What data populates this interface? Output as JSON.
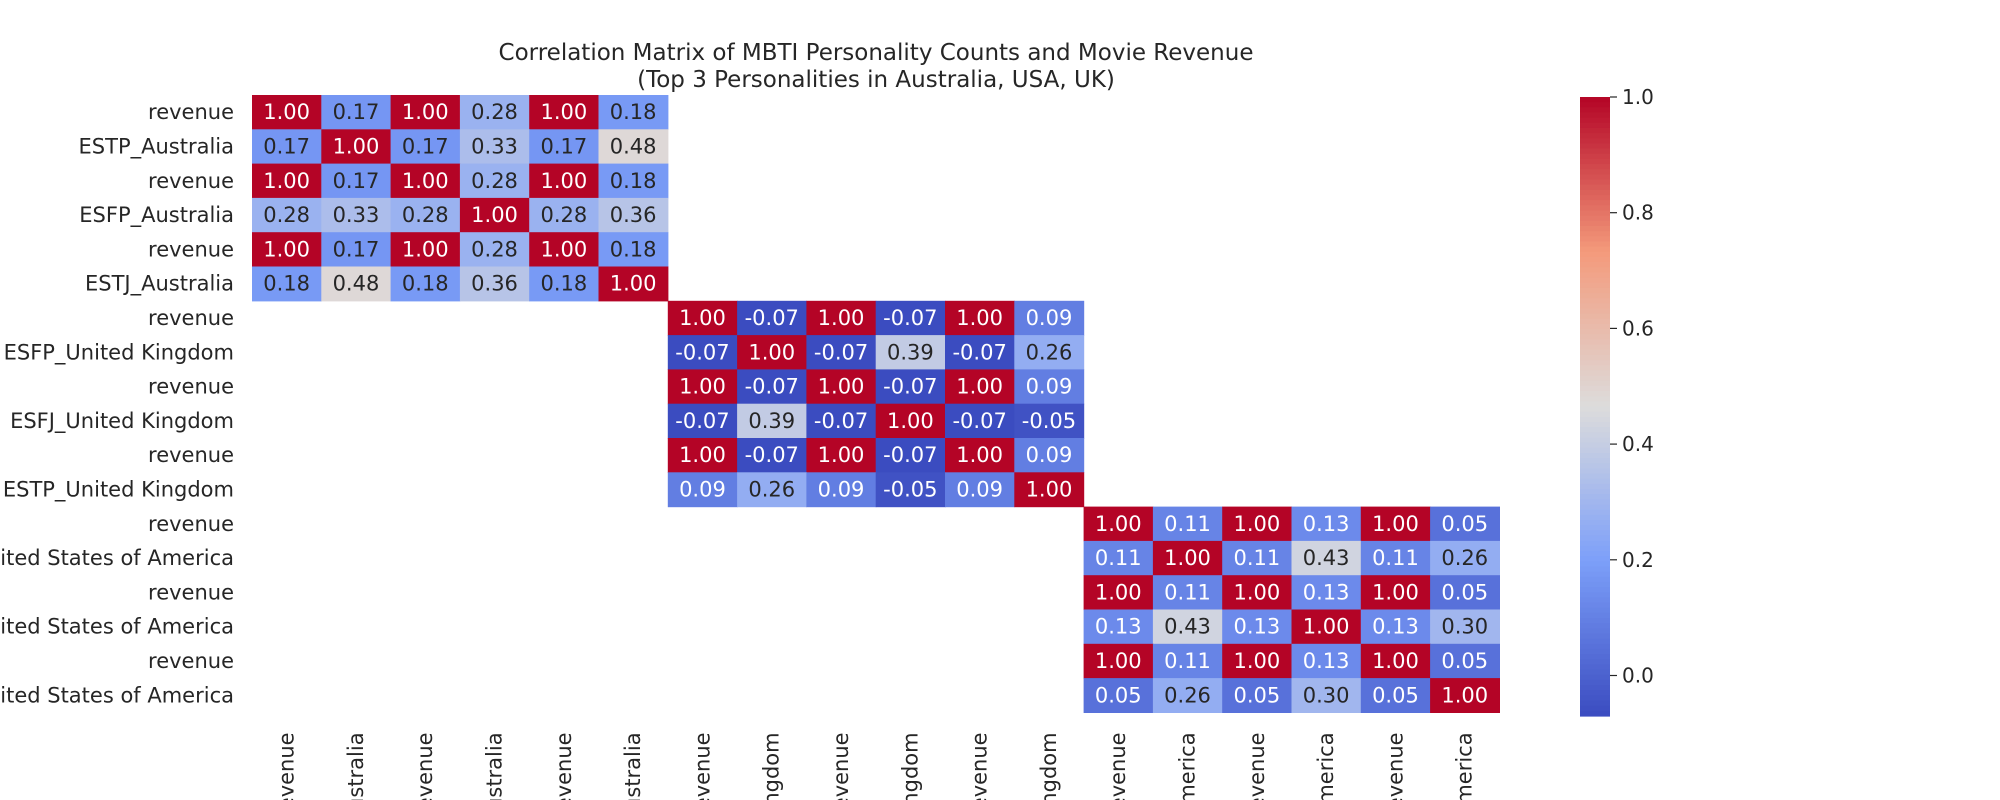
{
  "chart_data": {
    "type": "heatmap",
    "title": "Correlation Matrix of MBTI Personality Counts and Movie Revenue",
    "subtitle": "(Top 3 Personalities in Australia, USA, UK)",
    "row_labels": [
      "revenue",
      "ESTP_Australia",
      "revenue",
      "ESFP_Australia",
      "revenue",
      "ESTJ_Australia",
      "revenue",
      "ESFP_United Kingdom",
      "revenue",
      "ESFJ_United Kingdom",
      "revenue",
      "ESTP_United Kingdom",
      "revenue",
      "nited States of America",
      "revenue",
      "nited States of America",
      "revenue",
      "nited States of America"
    ],
    "col_labels": [
      "evenue",
      "ustralia",
      "evenue",
      "ustralia",
      "evenue",
      "ustralia",
      "evenue",
      "ngdom",
      "evenue",
      "ngdom",
      "evenue",
      "ngdom",
      "evenue",
      "merica",
      "evenue",
      "merica",
      "evenue",
      "merica"
    ],
    "blocks": [
      {
        "start": 0,
        "matrix": [
          [
            1.0,
            0.17,
            1.0,
            0.28,
            1.0,
            0.18
          ],
          [
            0.17,
            1.0,
            0.17,
            0.33,
            0.17,
            0.48
          ],
          [
            1.0,
            0.17,
            1.0,
            0.28,
            1.0,
            0.18
          ],
          [
            0.28,
            0.33,
            0.28,
            1.0,
            0.28,
            0.36
          ],
          [
            1.0,
            0.17,
            1.0,
            0.28,
            1.0,
            0.18
          ],
          [
            0.18,
            0.48,
            0.18,
            0.36,
            0.18,
            1.0
          ]
        ]
      },
      {
        "start": 6,
        "matrix": [
          [
            1.0,
            -0.07,
            1.0,
            -0.07,
            1.0,
            0.09
          ],
          [
            -0.07,
            1.0,
            -0.07,
            0.39,
            -0.07,
            0.26
          ],
          [
            1.0,
            -0.07,
            1.0,
            -0.07,
            1.0,
            0.09
          ],
          [
            -0.07,
            0.39,
            -0.07,
            1.0,
            -0.07,
            -0.05
          ],
          [
            1.0,
            -0.07,
            1.0,
            -0.07,
            1.0,
            0.09
          ],
          [
            0.09,
            0.26,
            0.09,
            -0.05,
            0.09,
            1.0
          ]
        ]
      },
      {
        "start": 12,
        "matrix": [
          [
            1.0,
            0.11,
            1.0,
            0.13,
            1.0,
            0.05
          ],
          [
            0.11,
            1.0,
            0.11,
            0.43,
            0.11,
            0.26
          ],
          [
            1.0,
            0.11,
            1.0,
            0.13,
            1.0,
            0.05
          ],
          [
            0.13,
            0.43,
            0.13,
            1.0,
            0.13,
            0.3
          ],
          [
            1.0,
            0.11,
            1.0,
            0.13,
            1.0,
            0.05
          ],
          [
            0.05,
            0.26,
            0.05,
            0.3,
            0.05,
            1.0
          ]
        ]
      }
    ],
    "colorscale": "coolwarm",
    "colorbar": {
      "range": [
        -0.07,
        1.0
      ],
      "ticks": [
        0.0,
        0.2,
        0.4,
        0.6,
        0.8,
        1.0
      ],
      "tick_labels": [
        "0.0",
        "0.2",
        "0.4",
        "0.6",
        "0.8",
        "1.0"
      ],
      "placement": "right"
    },
    "grid": false
  }
}
